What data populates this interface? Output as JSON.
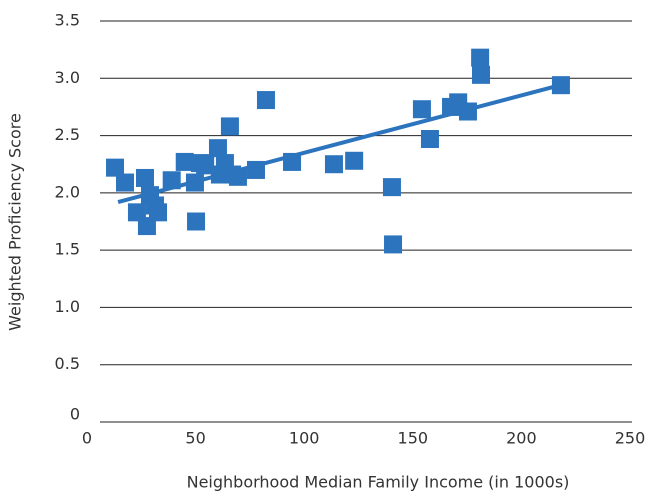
{
  "chart_data": {
    "type": "scatter",
    "xlabel": "Neighborhood Median Family Income (in 1000s)",
    "ylabel": "Weighted Proficiency Score",
    "xlim": [
      0,
      250
    ],
    "xticks": [
      0,
      50,
      100,
      150,
      200,
      250
    ],
    "ylim": [
      0,
      3.5
    ],
    "yticks": [
      0,
      0.5,
      {
        "value": 1,
        "label": "1.0"
      },
      1.5,
      {
        "value": 2,
        "label": "2.0"
      },
      2.5,
      {
        "value": 3,
        "label": "3.0"
      },
      3.5
    ],
    "grid": true,
    "color": "#2c74bd",
    "x": [
      12.9,
      17.5,
      23,
      26.7,
      27.6,
      29,
      31.3,
      32.7,
      39,
      45,
      49.7,
      50.2,
      52,
      54.4,
      60.3,
      61.2,
      63.5,
      65.8,
      66.8,
      69.5,
      77.8,
      82.4,
      94.4,
      113.7,
      123,
      140.4,
      140.9,
      154.2,
      157.9,
      167.6,
      170.9,
      175.4,
      181,
      181.4,
      218.2
    ],
    "values": [
      2.22,
      2.09,
      1.83,
      2.13,
      1.71,
      1.98,
      1.89,
      1.83,
      2.11,
      2.27,
      2.09,
      1.75,
      2.26,
      2.24,
      2.39,
      2.16,
      2.26,
      2.58,
      2.16,
      2.14,
      2.2,
      2.81,
      2.27,
      2.25,
      2.28,
      2.05,
      1.55,
      2.73,
      2.47,
      2.75,
      2.79,
      2.71,
      3.18,
      3.03,
      2.94
    ],
    "trendline": {
      "x": [
        14.3,
        217.8
      ],
      "values": [
        1.92,
        2.94
      ]
    }
  }
}
